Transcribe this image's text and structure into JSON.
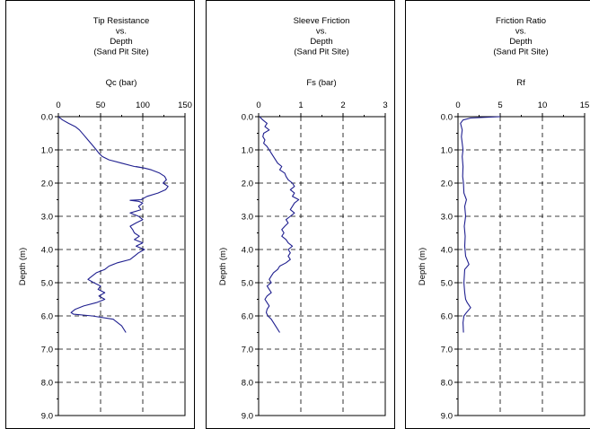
{
  "chart_data": [
    {
      "type": "line",
      "title_lines": [
        "Tip Resistance",
        "vs.",
        "Depth",
        "(Sand Pit Site)"
      ],
      "xlabel": "Qc (bar)",
      "ylabel": "Depth (m)",
      "xlim": [
        0,
        150
      ],
      "xticks": [
        0,
        50,
        100,
        150
      ],
      "ylim": [
        0,
        9
      ],
      "yticks": [
        "0.0",
        "1.0",
        "2.0",
        "3.0",
        "4.0",
        "5.0",
        "6.0",
        "7.0",
        "8.0",
        "9.0"
      ],
      "y_inverted": true,
      "x_axis_position": "top",
      "grid": true,
      "series": [
        {
          "color": "#1f1f8f",
          "points": [
            [
              0,
              0
            ],
            [
              5,
              0.1
            ],
            [
              12,
              0.2
            ],
            [
              20,
              0.3
            ],
            [
              25,
              0.4
            ],
            [
              30,
              0.55
            ],
            [
              35,
              0.7
            ],
            [
              40,
              0.85
            ],
            [
              45,
              1.0
            ],
            [
              48,
              1.1
            ],
            [
              52,
              1.2
            ],
            [
              60,
              1.3
            ],
            [
              75,
              1.4
            ],
            [
              90,
              1.5
            ],
            [
              102,
              1.55
            ],
            [
              92,
              1.5
            ],
            [
              102,
              1.55
            ],
            [
              110,
              1.6
            ],
            [
              120,
              1.7
            ],
            [
              126,
              1.8
            ],
            [
              128,
              1.9
            ],
            [
              124,
              2.0
            ],
            [
              130,
              2.1
            ],
            [
              127,
              2.2
            ],
            [
              118,
              2.3
            ],
            [
              105,
              2.4
            ],
            [
              98,
              2.5
            ],
            [
              85,
              2.52
            ],
            [
              95,
              2.55
            ],
            [
              100,
              2.6
            ],
            [
              95,
              2.7
            ],
            [
              98,
              2.8
            ],
            [
              85,
              2.9
            ],
            [
              95,
              3.0
            ],
            [
              100,
              3.1
            ],
            [
              92,
              3.2
            ],
            [
              85,
              3.3
            ],
            [
              88,
              3.4
            ],
            [
              90,
              3.5
            ],
            [
              96,
              3.6
            ],
            [
              90,
              3.7
            ],
            [
              100,
              3.8
            ],
            [
              92,
              3.9
            ],
            [
              102,
              4.0
            ],
            [
              95,
              4.1
            ],
            [
              90,
              4.2
            ],
            [
              85,
              4.3
            ],
            [
              70,
              4.4
            ],
            [
              60,
              4.5
            ],
            [
              55,
              4.6
            ],
            [
              45,
              4.7
            ],
            [
              40,
              4.8
            ],
            [
              35,
              4.9
            ],
            [
              42,
              5.0
            ],
            [
              50,
              5.1
            ],
            [
              47,
              5.2
            ],
            [
              55,
              5.3
            ],
            [
              48,
              5.4
            ],
            [
              55,
              5.5
            ],
            [
              45,
              5.6
            ],
            [
              30,
              5.7
            ],
            [
              20,
              5.8
            ],
            [
              15,
              5.9
            ],
            [
              18,
              5.95
            ],
            [
              40,
              6.0
            ],
            [
              65,
              6.1
            ],
            [
              75,
              6.3
            ],
            [
              80,
              6.5
            ]
          ]
        }
      ]
    },
    {
      "type": "line",
      "title_lines": [
        "Sleeve Friction",
        "vs.",
        "Depth",
        "(Sand Pit Site)"
      ],
      "xlabel": "Fs (bar)",
      "ylabel": "Depth (m)",
      "xlim": [
        0,
        3
      ],
      "xticks": [
        0,
        1,
        2,
        3
      ],
      "ylim": [
        0,
        9
      ],
      "yticks": [
        "0.0",
        "1.0",
        "2.0",
        "3.0",
        "4.0",
        "5.0",
        "6.0",
        "7.0",
        "8.0",
        "9.0"
      ],
      "y_inverted": true,
      "x_axis_position": "top",
      "grid": true,
      "series": [
        {
          "color": "#1f1f8f",
          "points": [
            [
              0.02,
              0
            ],
            [
              0.1,
              0.1
            ],
            [
              0.2,
              0.2
            ],
            [
              0.15,
              0.3
            ],
            [
              0.25,
              0.4
            ],
            [
              0.12,
              0.5
            ],
            [
              0.1,
              0.6
            ],
            [
              0.15,
              0.7
            ],
            [
              0.12,
              0.8
            ],
            [
              0.2,
              0.9
            ],
            [
              0.25,
              1.0
            ],
            [
              0.3,
              1.1
            ],
            [
              0.35,
              1.2
            ],
            [
              0.4,
              1.3
            ],
            [
              0.45,
              1.4
            ],
            [
              0.55,
              1.5
            ],
            [
              0.5,
              1.6
            ],
            [
              0.62,
              1.7
            ],
            [
              0.65,
              1.8
            ],
            [
              0.7,
              1.9
            ],
            [
              0.8,
              2.0
            ],
            [
              0.85,
              2.1
            ],
            [
              0.75,
              2.2
            ],
            [
              0.85,
              2.3
            ],
            [
              0.8,
              2.4
            ],
            [
              0.95,
              2.5
            ],
            [
              0.85,
              2.6
            ],
            [
              0.8,
              2.7
            ],
            [
              0.75,
              2.8
            ],
            [
              0.85,
              2.9
            ],
            [
              0.75,
              3.0
            ],
            [
              0.65,
              3.1
            ],
            [
              0.7,
              3.2
            ],
            [
              0.62,
              3.3
            ],
            [
              0.55,
              3.4
            ],
            [
              0.6,
              3.5
            ],
            [
              0.55,
              3.6
            ],
            [
              0.65,
              3.7
            ],
            [
              0.7,
              3.8
            ],
            [
              0.8,
              3.9
            ],
            [
              0.7,
              4.0
            ],
            [
              0.75,
              4.1
            ],
            [
              0.7,
              4.2
            ],
            [
              0.75,
              4.3
            ],
            [
              0.65,
              4.4
            ],
            [
              0.5,
              4.5
            ],
            [
              0.45,
              4.6
            ],
            [
              0.35,
              4.7
            ],
            [
              0.3,
              4.8
            ],
            [
              0.25,
              4.9
            ],
            [
              0.3,
              5.0
            ],
            [
              0.2,
              5.1
            ],
            [
              0.25,
              5.2
            ],
            [
              0.3,
              5.3
            ],
            [
              0.2,
              5.4
            ],
            [
              0.15,
              5.5
            ],
            [
              0.2,
              5.6
            ],
            [
              0.25,
              5.7
            ],
            [
              0.2,
              5.8
            ],
            [
              0.18,
              5.9
            ],
            [
              0.22,
              6.0
            ],
            [
              0.3,
              6.1
            ],
            [
              0.4,
              6.3
            ],
            [
              0.5,
              6.5
            ]
          ]
        }
      ]
    },
    {
      "type": "line",
      "title_lines": [
        "Friction Ratio",
        "vs.",
        "Depth",
        "(Sand Pit Site)"
      ],
      "xlabel": "Rf",
      "ylabel": "Depth (m)",
      "xlim": [
        0,
        15
      ],
      "xticks": [
        0,
        5,
        10,
        15
      ],
      "ylim": [
        0,
        9
      ],
      "yticks": [
        "0.0",
        "1.0",
        "2.0",
        "3.0",
        "4.0",
        "5.0",
        "6.0",
        "7.0",
        "8.0",
        "9.0"
      ],
      "y_inverted": true,
      "x_axis_position": "top",
      "grid": true,
      "series": [
        {
          "color": "#1f1f8f",
          "points": [
            [
              5,
              0
            ],
            [
              1.5,
              0.04
            ],
            [
              0.6,
              0.1
            ],
            [
              0.3,
              0.2
            ],
            [
              0.5,
              0.4
            ],
            [
              0.4,
              0.6
            ],
            [
              0.5,
              0.8
            ],
            [
              0.6,
              1.0
            ],
            [
              0.5,
              1.2
            ],
            [
              0.6,
              1.5
            ],
            [
              0.55,
              1.8
            ],
            [
              0.65,
              2.0
            ],
            [
              0.7,
              2.3
            ],
            [
              1.0,
              2.5
            ],
            [
              0.8,
              2.7
            ],
            [
              0.9,
              3.0
            ],
            [
              0.75,
              3.3
            ],
            [
              0.85,
              3.6
            ],
            [
              0.8,
              3.9
            ],
            [
              0.9,
              4.2
            ],
            [
              1.3,
              4.45
            ],
            [
              0.8,
              4.6
            ],
            [
              0.7,
              5.0
            ],
            [
              0.8,
              5.3
            ],
            [
              0.9,
              5.5
            ],
            [
              1.1,
              5.6
            ],
            [
              1.5,
              5.75
            ],
            [
              1.0,
              5.9
            ],
            [
              0.7,
              6.0
            ],
            [
              0.6,
              6.2
            ],
            [
              0.65,
              6.5
            ]
          ]
        }
      ]
    }
  ]
}
